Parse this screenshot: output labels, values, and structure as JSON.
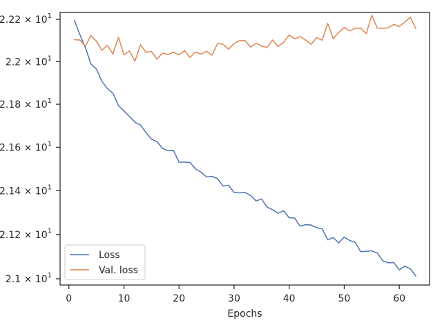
{
  "chart_data": {
    "type": "line",
    "title": "",
    "xlabel": "Epochs",
    "ylabel": "",
    "xlim": [
      -1.6,
      65.5
    ],
    "ylim": [
      20.972,
      22.233
    ],
    "y_scale": "log",
    "grid": false,
    "legend_position": "lower-left",
    "x_ticks": [
      0,
      10,
      20,
      30,
      40,
      50,
      60
    ],
    "x_tick_labels": [
      "0",
      "10",
      "20",
      "30",
      "40",
      "50",
      "60"
    ],
    "y_ticks": [
      21.0,
      21.2,
      21.4,
      21.6,
      21.8,
      22.0,
      22.2
    ],
    "y_tick_labels": [
      {
        "mantissa": "2.1",
        "base": "10",
        "exp": "1"
      },
      {
        "mantissa": "2.12",
        "base": "10",
        "exp": "1"
      },
      {
        "mantissa": "2.14",
        "base": "10",
        "exp": "1"
      },
      {
        "mantissa": "2.16",
        "base": "10",
        "exp": "1"
      },
      {
        "mantissa": "2.18",
        "base": "10",
        "exp": "1"
      },
      {
        "mantissa": "2.2",
        "base": "10",
        "exp": "1"
      },
      {
        "mantissa": "2.22",
        "base": "10",
        "exp": "1"
      }
    ],
    "x": [
      1,
      2,
      3,
      4,
      5,
      6,
      7,
      8,
      9,
      10,
      11,
      12,
      13,
      14,
      15,
      16,
      17,
      18,
      19,
      20,
      21,
      22,
      23,
      24,
      25,
      26,
      27,
      28,
      29,
      30,
      31,
      32,
      33,
      34,
      35,
      36,
      37,
      38,
      39,
      40,
      41,
      42,
      43,
      44,
      45,
      46,
      47,
      48,
      49,
      50,
      51,
      52,
      53,
      54,
      55,
      56,
      57,
      58,
      59,
      60,
      61,
      62,
      63
    ],
    "series": [
      {
        "name": "Loss",
        "color": "#4c72b0",
        "values": [
          22.196,
          22.127,
          22.065,
          21.989,
          21.965,
          21.907,
          21.873,
          21.851,
          21.794,
          21.769,
          21.743,
          21.716,
          21.703,
          21.668,
          21.637,
          21.626,
          21.595,
          21.584,
          21.585,
          21.531,
          21.531,
          21.53,
          21.5,
          21.485,
          21.463,
          21.466,
          21.455,
          21.421,
          21.425,
          21.392,
          21.39,
          21.392,
          21.378,
          21.353,
          21.362,
          21.325,
          21.313,
          21.297,
          21.308,
          21.276,
          21.275,
          21.238,
          21.245,
          21.243,
          21.231,
          21.226,
          21.176,
          21.186,
          21.162,
          21.188,
          21.173,
          21.164,
          21.122,
          21.124,
          21.126,
          21.116,
          21.081,
          21.072,
          21.073,
          21.04,
          21.057,
          21.045,
          21.012
        ]
      },
      {
        "name": "Val. loss",
        "color": "#dd8452",
        "values": [
          22.103,
          22.102,
          22.073,
          22.124,
          22.096,
          22.053,
          22.077,
          22.035,
          22.115,
          22.032,
          22.05,
          22.002,
          22.08,
          22.044,
          22.048,
          22.012,
          22.04,
          22.033,
          22.045,
          22.032,
          22.052,
          22.02,
          22.045,
          22.035,
          22.049,
          22.03,
          22.086,
          22.082,
          22.059,
          22.085,
          22.099,
          22.099,
          22.068,
          22.087,
          22.073,
          22.067,
          22.102,
          22.071,
          22.091,
          22.126,
          22.108,
          22.118,
          22.101,
          22.082,
          22.113,
          22.101,
          22.181,
          22.108,
          22.138,
          22.162,
          22.145,
          22.158,
          22.158,
          22.132,
          22.219,
          22.159,
          22.157,
          22.16,
          22.176,
          22.166,
          22.187,
          22.21,
          22.157
        ]
      }
    ]
  }
}
